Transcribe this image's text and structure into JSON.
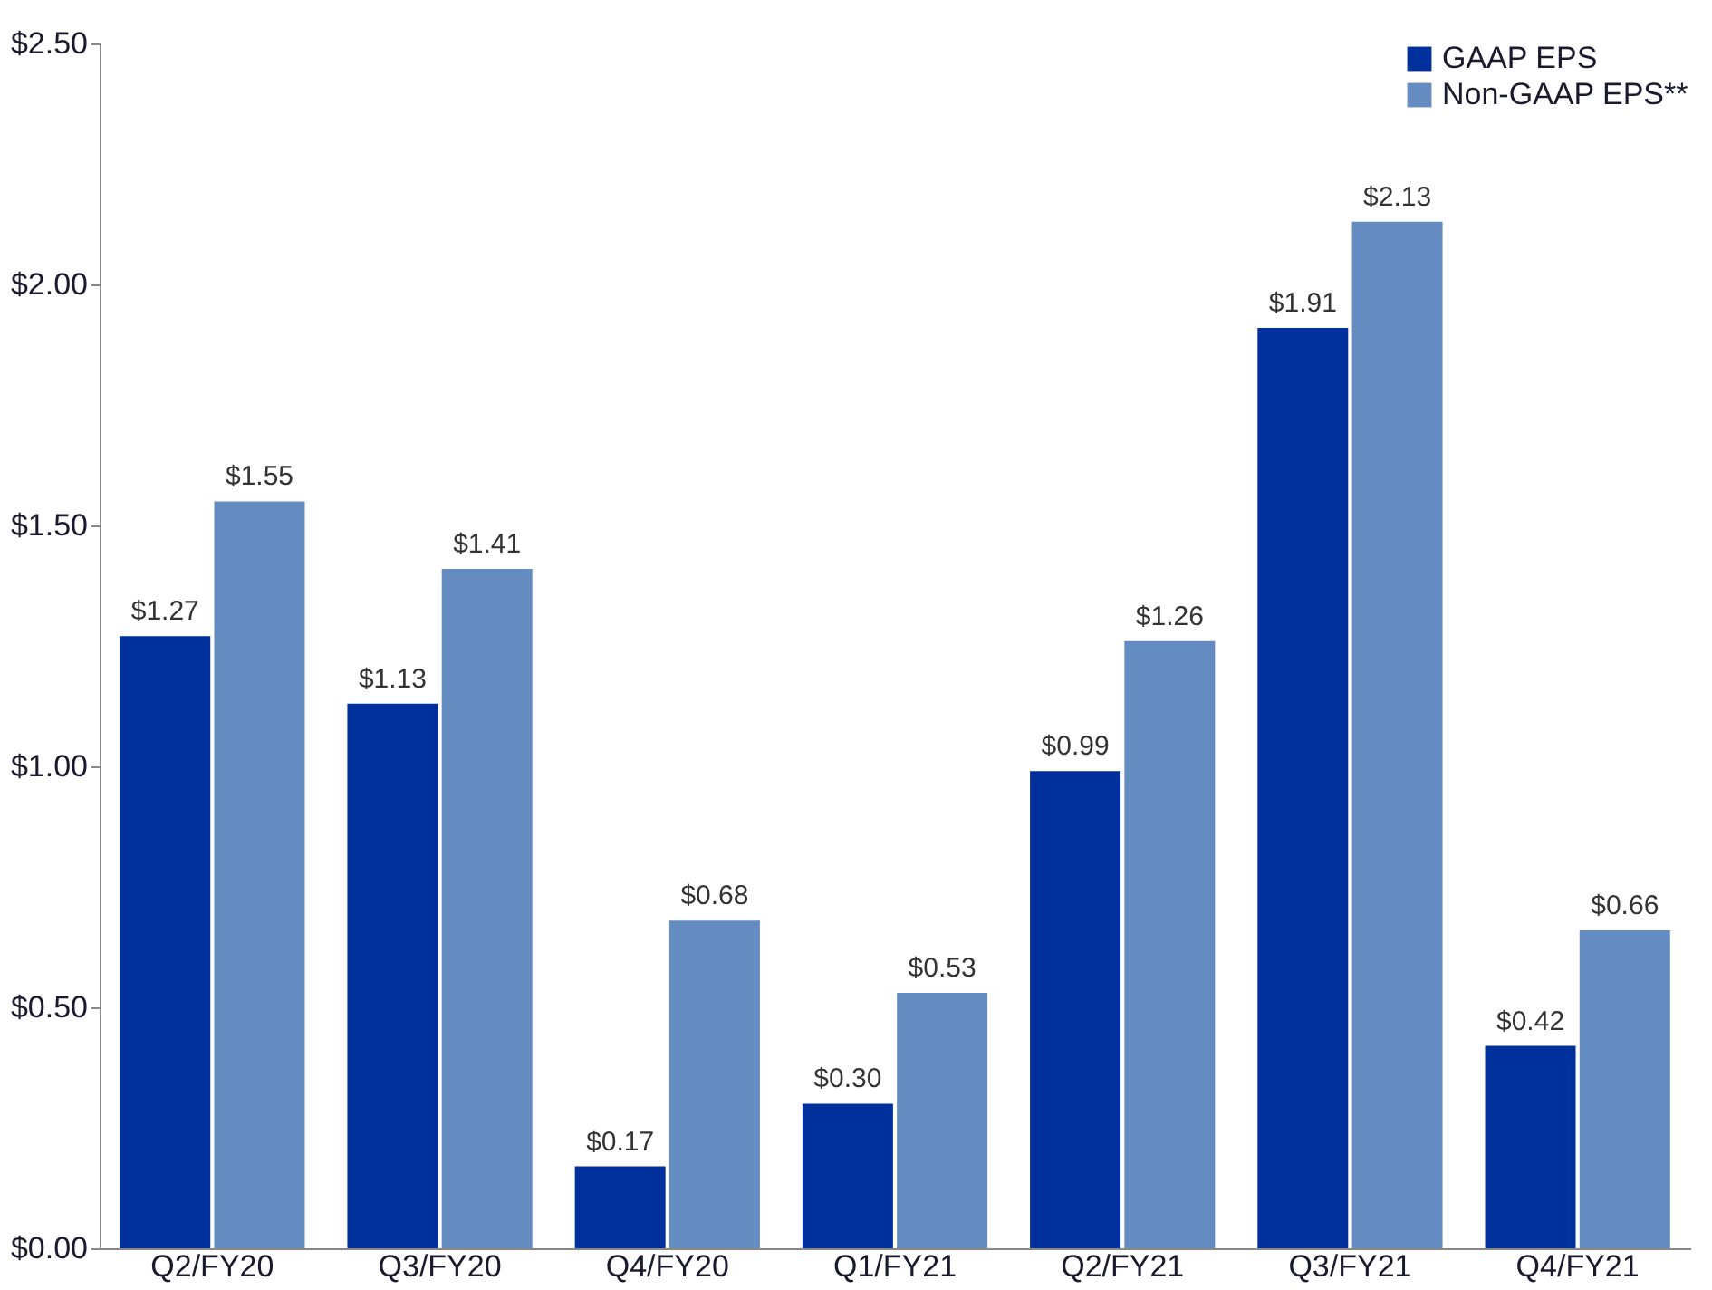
{
  "chart_data": {
    "type": "bar",
    "categories": [
      "Q2/FY20",
      "Q3/FY20",
      "Q4/FY20",
      "Q1/FY21",
      "Q2/FY21",
      "Q3/FY21",
      "Q4/FY21"
    ],
    "series": [
      {
        "name": "GAAP EPS",
        "color": "#00309c",
        "values": [
          1.27,
          1.13,
          0.17,
          0.3,
          0.99,
          1.91,
          0.42
        ],
        "value_labels": [
          "$1.27",
          "$1.13",
          "$0.17",
          "$0.30",
          "$0.99",
          "$1.91",
          "$0.42"
        ]
      },
      {
        "name": "Non-GAAP EPS**",
        "color": "#648cc0",
        "values": [
          1.55,
          1.41,
          0.68,
          0.53,
          1.26,
          2.13,
          0.66
        ],
        "value_labels": [
          "$1.55",
          "$1.41",
          "$0.68",
          "$0.53",
          "$1.26",
          "$2.13",
          "$0.66"
        ]
      }
    ],
    "ylim": [
      0,
      2.5
    ],
    "yticks": [
      {
        "value": 0,
        "label": "$0.00"
      },
      {
        "value": 0.5,
        "label": "$0.50"
      },
      {
        "value": 1,
        "label": "$1.00"
      },
      {
        "value": 1.5,
        "label": "$1.50"
      },
      {
        "value": 2,
        "label": "$2.00"
      },
      {
        "value": 2.5,
        "label": "$2.50"
      }
    ],
    "grid": false,
    "legend": "top right"
  }
}
